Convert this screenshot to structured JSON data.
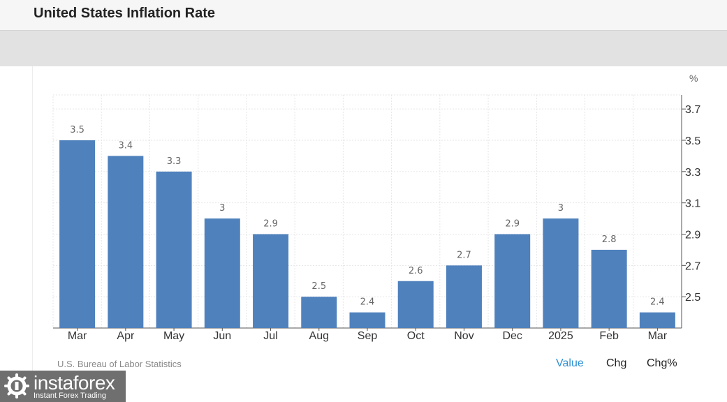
{
  "header": {
    "title": "United States Inflation Rate"
  },
  "footer": {
    "source": "U.S. Bureau of Labor Statistics",
    "tabs": [
      "Value",
      "Chg",
      "Chg%"
    ],
    "active_tab": "Value"
  },
  "logo": {
    "name": "instaforex",
    "tagline": "Instant Forex Trading"
  },
  "colors": {
    "bar": "#4f81bd",
    "active_tab": "#2f8fd3",
    "grid": "#e6e6e6"
  },
  "chart_data": {
    "type": "bar",
    "unit": "%",
    "categories": [
      "Mar",
      "Apr",
      "May",
      "Jun",
      "Jul",
      "Aug",
      "Sep",
      "Oct",
      "Nov",
      "Dec",
      "2025",
      "Feb",
      "Mar"
    ],
    "values": [
      3.5,
      3.4,
      3.3,
      3,
      2.9,
      2.5,
      2.4,
      2.6,
      2.7,
      2.9,
      3,
      2.8,
      2.4
    ],
    "data_labels": [
      "3.5",
      "3.4",
      "3.3",
      "3",
      "2.9",
      "2.5",
      "2.4",
      "2.6",
      "2.7",
      "2.9",
      "3",
      "2.8",
      "2.4"
    ],
    "yticks": [
      2.5,
      2.7,
      2.9,
      3.1,
      3.3,
      3.5,
      3.7
    ],
    "ytick_labels": [
      "2.5",
      "2.7",
      "2.9",
      "3.1",
      "3.3",
      "3.5",
      "3.7"
    ],
    "ylim": [
      2.3,
      3.79
    ],
    "y_axis_side": "right",
    "grid": true,
    "legend": "none"
  }
}
